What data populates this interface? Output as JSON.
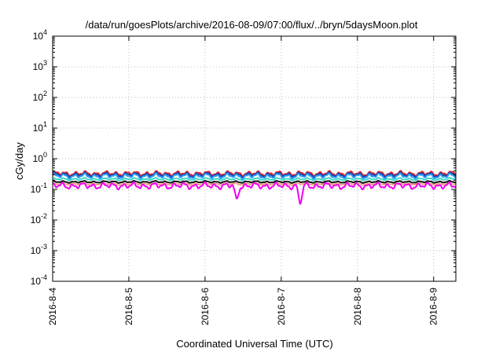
{
  "chart_data": {
    "type": "line",
    "title": "/data/run/goesPlots/archive/2016-08-09/07:00/flux/../bryn/5daysMoon.plot",
    "xlabel": "Coordinated Universal Time (UTC)",
    "ylabel": "cGy/day",
    "y_scale": "log",
    "ylim": [
      0.0001,
      10000
    ],
    "y_ticks": [
      {
        "mantissa": "10",
        "exp": "-4"
      },
      {
        "mantissa": "10",
        "exp": "-3"
      },
      {
        "mantissa": "10",
        "exp": "-2"
      },
      {
        "mantissa": "10",
        "exp": "-1"
      },
      {
        "mantissa": "10",
        "exp": "0"
      },
      {
        "mantissa": "10",
        "exp": "1"
      },
      {
        "mantissa": "10",
        "exp": "2"
      },
      {
        "mantissa": "10",
        "exp": "3"
      },
      {
        "mantissa": "10",
        "exp": "4"
      }
    ],
    "x_ticks": [
      "2016-8-4",
      "2016-8-5",
      "2016-8-6",
      "2016-8-7",
      "2016-8-8",
      "2016-8-9"
    ],
    "xlim": [
      "2016-08-04 00:00",
      "2016-08-09 07:00"
    ],
    "grid": true,
    "series": [
      {
        "color": "#e3262b",
        "base": 0.33,
        "amp": 0.18
      },
      {
        "color": "#1b3fb0",
        "base": 0.3,
        "amp": 0.18
      },
      {
        "color": "#2a9df4",
        "base": 0.27,
        "amp": 0.2
      },
      {
        "color": "#38d9c8",
        "base": 0.215,
        "amp": 0.1
      },
      {
        "color": "#111111",
        "base": 0.175,
        "amp": 0.08
      },
      {
        "color": "#f2a38a",
        "base": 0.15,
        "amp": 0.08
      },
      {
        "color": "#f000f0",
        "base": 0.13,
        "amp": 0.25
      }
    ],
    "dips": [
      {
        "at": "2016-08-06 10:00",
        "value": 0.045
      },
      {
        "at": "2016-08-07 06:00",
        "value": 0.03
      }
    ]
  }
}
